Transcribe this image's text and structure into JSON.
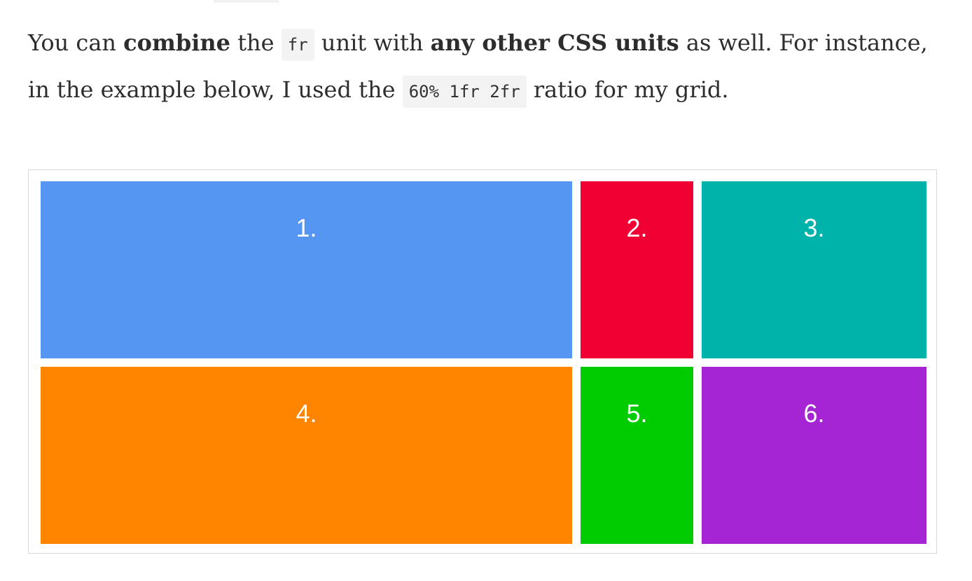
{
  "paragraph": {
    "t1": "You can ",
    "b1": "combine",
    "t2": " the ",
    "code1": "fr",
    "t3": " unit with ",
    "b2": "any other CSS units",
    "t4": " as well. For instance, in the example below, I used the ",
    "code2": "60% 1fr 2fr",
    "t5": " ratio for my grid."
  },
  "grid": {
    "cells": [
      {
        "label": "1.",
        "color": "#5596f2"
      },
      {
        "label": "2.",
        "color": "#f00033"
      },
      {
        "label": "3.",
        "color": "#00b3aa"
      },
      {
        "label": "4.",
        "color": "#ff8400"
      },
      {
        "label": "5.",
        "color": "#00cc00"
      },
      {
        "label": "6.",
        "color": "#a524d4"
      }
    ]
  }
}
